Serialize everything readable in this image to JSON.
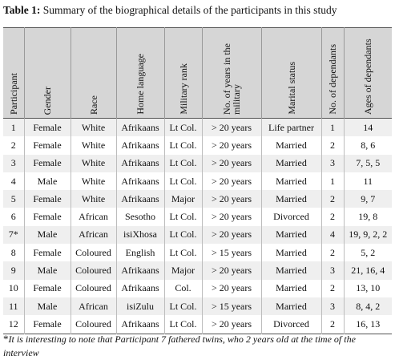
{
  "caption": {
    "label": "Table 1:",
    "text": " Summary of the biographical details of the participants in this study"
  },
  "headers": [
    "Participant",
    "Gender",
    "Race",
    "Home language",
    "Military rank",
    "No. of years in the military",
    "Marital status",
    "No. of dependants",
    "Ages of dependants"
  ],
  "rows": [
    [
      "1",
      "Female",
      "White",
      "Afrikaans",
      "Lt Col.",
      "> 20 years",
      "Life partner",
      "1",
      "14"
    ],
    [
      "2",
      "Female",
      "White",
      "Afrikaans",
      "Lt Col.",
      "> 20 years",
      "Married",
      "2",
      "8, 6"
    ],
    [
      "3",
      "Female",
      "White",
      "Afrikaans",
      "Lt Col.",
      "> 20 years",
      "Married",
      "3",
      "7, 5, 5"
    ],
    [
      "4",
      "Male",
      "White",
      "Afrikaans",
      "Lt Col.",
      "> 20 years",
      "Married",
      "1",
      "11"
    ],
    [
      "5",
      "Female",
      "White",
      "Afrikaans",
      "Major",
      "> 20 years",
      "Married",
      "2",
      "9, 7"
    ],
    [
      "6",
      "Female",
      "African",
      "Sesotho",
      "Lt Col.",
      "> 20 years",
      "Divorced",
      "2",
      "19, 8"
    ],
    [
      "7*",
      "Male",
      "African",
      "isiXhosa",
      "Lt Col.",
      "> 20 years",
      "Married",
      "4",
      "19, 9, 2, 2"
    ],
    [
      "8",
      "Female",
      "Coloured",
      "English",
      "Lt Col.",
      "> 15 years",
      "Married",
      "2",
      "5, 2"
    ],
    [
      "9",
      "Male",
      "Coloured",
      "Afrikaans",
      "Major",
      "> 20 years",
      "Married",
      "3",
      "21, 16, 4"
    ],
    [
      "10",
      "Female",
      "Coloured",
      "Afrikaans",
      "Col.",
      "> 20 years",
      "Married",
      "2",
      "13, 10"
    ],
    [
      "11",
      "Male",
      "African",
      "isiZulu",
      "Lt Col.",
      "> 15 years",
      "Married",
      "3",
      "8, 4, 2"
    ],
    [
      "12",
      "Female",
      "Coloured",
      "Afrikaans",
      "Lt Col.",
      "> 20 years",
      "Divorced",
      "2",
      "16, 13"
    ]
  ],
  "footnote": {
    "marker": "*",
    "text": "It is interesting to note that Participant 7 fathered twins, who 2 years old at the time of the interview"
  }
}
